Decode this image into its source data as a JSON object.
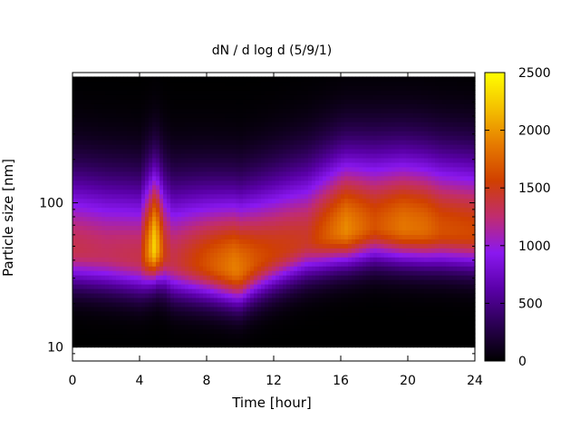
{
  "chart_data": {
    "type": "heatmap",
    "title": "dN / d log d (5/9/1)",
    "xlabel": "Time [hour]",
    "ylabel": "Particle size [nm]",
    "x_ticks": [
      "0",
      "4",
      "8",
      "12",
      "16",
      "20",
      "24"
    ],
    "x_tick_values": [
      0,
      4,
      8,
      12,
      16,
      20,
      24
    ],
    "xlim": [
      0,
      24
    ],
    "y_scale": "log",
    "y_ticks": [
      "10",
      "100"
    ],
    "y_tick_values": [
      10,
      100
    ],
    "ylim": [
      8,
      800
    ],
    "data_size_range": [
      10,
      750
    ],
    "colorbar": {
      "ticks": [
        "0",
        "500",
        "1000",
        "1500",
        "2000",
        "2500"
      ],
      "tick_values": [
        0,
        500,
        1000,
        1500,
        2000,
        2500
      ],
      "range": [
        0,
        2500
      ],
      "palette": [
        "#000000",
        "#2a0052",
        "#5a00a8",
        "#8a18f0",
        "#c02c70",
        "#d04000",
        "#e67a00",
        "#f4c000",
        "#ffff00"
      ]
    },
    "mode_diameter_nm": [
      {
        "t": 0,
        "d": 48
      },
      {
        "t": 2,
        "d": 45
      },
      {
        "t": 4,
        "d": 42
      },
      {
        "t": 5,
        "d": 50
      },
      {
        "t": 6,
        "d": 40
      },
      {
        "t": 8,
        "d": 38
      },
      {
        "t": 10,
        "d": 35
      },
      {
        "t": 12,
        "d": 45
      },
      {
        "t": 14,
        "d": 55
      },
      {
        "t": 16,
        "d": 65
      },
      {
        "t": 18,
        "d": 70
      },
      {
        "t": 20,
        "d": 68
      },
      {
        "t": 22,
        "d": 65
      },
      {
        "t": 24,
        "d": 62
      }
    ],
    "peak_concentration": [
      {
        "t": 0,
        "v": 1350
      },
      {
        "t": 2,
        "v": 1300
      },
      {
        "t": 4,
        "v": 1350
      },
      {
        "t": 4.9,
        "v": 2300
      },
      {
        "t": 5.5,
        "v": 1500
      },
      {
        "t": 6,
        "v": 1350
      },
      {
        "t": 8,
        "v": 1650
      },
      {
        "t": 9.7,
        "v": 1900
      },
      {
        "t": 11,
        "v": 1650
      },
      {
        "t": 12,
        "v": 1550
      },
      {
        "t": 14,
        "v": 1450
      },
      {
        "t": 16.3,
        "v": 1950
      },
      {
        "t": 18,
        "v": 1650
      },
      {
        "t": 19.7,
        "v": 1850
      },
      {
        "t": 21,
        "v": 1800
      },
      {
        "t": 22,
        "v": 1650
      },
      {
        "t": 24,
        "v": 1600
      }
    ]
  }
}
